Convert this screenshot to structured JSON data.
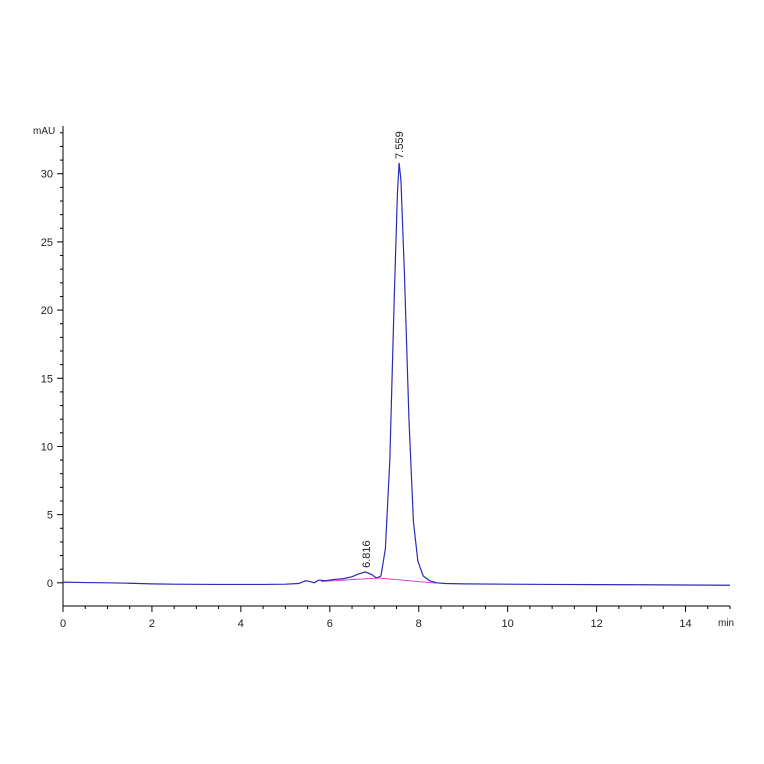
{
  "chart_data": {
    "type": "line",
    "title": "",
    "y_unit": "mAU",
    "x_unit": "min",
    "xlim": [
      0,
      15
    ],
    "ylim": [
      -1.7,
      33.5
    ],
    "x_ticks": [
      0,
      2,
      4,
      6,
      8,
      10,
      12,
      14
    ],
    "y_ticks": [
      0,
      5,
      10,
      15,
      20,
      25,
      30
    ],
    "grid": false,
    "colors": {
      "signal": "#2b2bb8",
      "baseline": "#e040e0",
      "axis": "#000000"
    },
    "peaks": [
      {
        "label": "6.816",
        "x": 6.816,
        "y": 0.8
      },
      {
        "label": "7.559",
        "x": 7.559,
        "y": 30.8
      }
    ],
    "series": [
      {
        "values": [
          [
            0,
            0.05
          ],
          [
            0.5,
            0.02
          ],
          [
            1.0,
            0.0
          ],
          [
            1.5,
            -0.03
          ],
          [
            2.0,
            -0.08
          ],
          [
            2.5,
            -0.1
          ],
          [
            3.0,
            -0.11
          ],
          [
            3.5,
            -0.12
          ],
          [
            4.0,
            -0.12
          ],
          [
            4.5,
            -0.12
          ],
          [
            5.0,
            -0.1
          ],
          [
            5.3,
            -0.05
          ],
          [
            5.45,
            0.15
          ],
          [
            5.55,
            0.1
          ],
          [
            5.65,
            0.0
          ],
          [
            5.75,
            0.2
          ],
          [
            5.9,
            0.15
          ],
          [
            6.1,
            0.25
          ],
          [
            6.3,
            0.3
          ],
          [
            6.5,
            0.45
          ],
          [
            6.65,
            0.65
          ],
          [
            6.8,
            0.8
          ],
          [
            6.95,
            0.6
          ],
          [
            7.05,
            0.35
          ],
          [
            7.15,
            0.5
          ],
          [
            7.25,
            2.5
          ],
          [
            7.35,
            9.0
          ],
          [
            7.45,
            21.0
          ],
          [
            7.52,
            28.5
          ],
          [
            7.559,
            30.8
          ],
          [
            7.6,
            29.5
          ],
          [
            7.68,
            22.5
          ],
          [
            7.78,
            12.0
          ],
          [
            7.88,
            4.5
          ],
          [
            7.98,
            1.6
          ],
          [
            8.1,
            0.5
          ],
          [
            8.25,
            0.15
          ],
          [
            8.4,
            0.0
          ],
          [
            8.6,
            -0.05
          ],
          [
            9.0,
            -0.08
          ],
          [
            10.0,
            -0.1
          ],
          [
            11.0,
            -0.12
          ],
          [
            12.0,
            -0.13
          ],
          [
            13.0,
            -0.14
          ],
          [
            14.0,
            -0.16
          ],
          [
            15.0,
            -0.18
          ]
        ]
      }
    ],
    "baselines": [
      [
        [
          5.8,
          0.1
        ],
        [
          7.1,
          0.35
        ]
      ],
      [
        [
          7.1,
          0.35
        ],
        [
          8.4,
          -0.02
        ]
      ]
    ]
  }
}
